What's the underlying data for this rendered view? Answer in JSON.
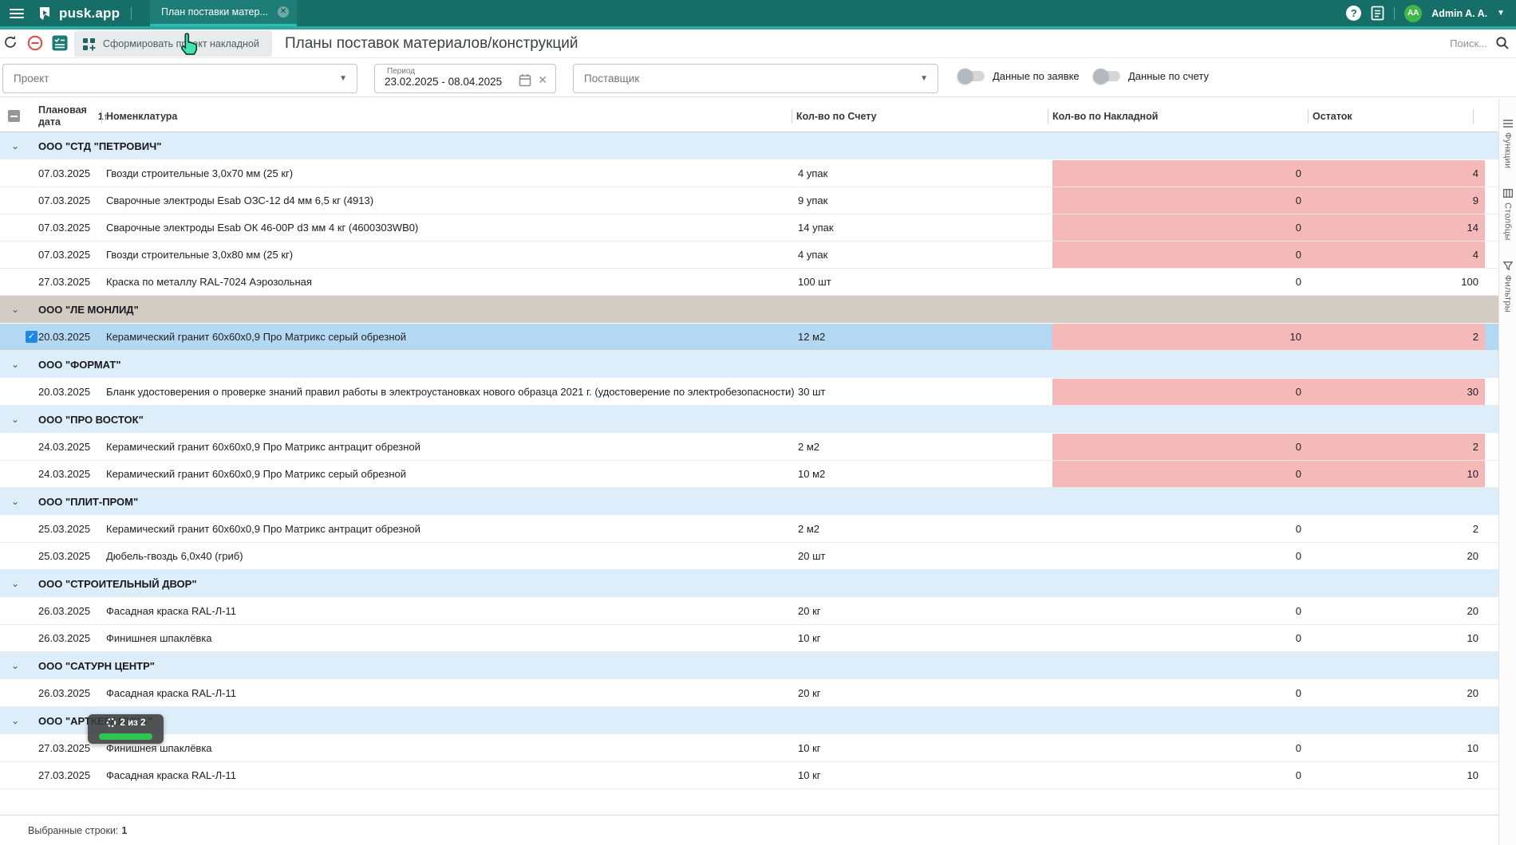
{
  "topbar": {
    "app_name": "pusk.app",
    "tab_title": "План поставки матер...",
    "help_glyph": "?",
    "user_initials": "AA",
    "user_name": "Admin A. A."
  },
  "toolbar": {
    "generate_button_label": "Сформировать проект накладной",
    "page_title": "Планы поставок материалов/конструкций",
    "search_placeholder": "Поиск..."
  },
  "filters": {
    "project_label": "Проект",
    "period_label": "Период",
    "period_value": "23.02.2025 - 08.04.2025",
    "supplier_label": "Поставщик",
    "toggle_request_label": "Данные по заявке",
    "toggle_invoice_label": "Данные по счету",
    "toggle_request_on": false,
    "toggle_invoice_on": false
  },
  "table": {
    "header": {
      "planned_date": "Плановая дата",
      "sort_indicator": "1↑",
      "nomenclature": "Номенклатура",
      "qty_invoice": "Кол-во по Счету",
      "qty_waybill": "Кол-во по Накладной",
      "remainder": "Остаток"
    },
    "groups": [
      {
        "name": "ООО \"СТД \"ПЕТРОВИЧ\"",
        "variant": "blue",
        "rows": [
          {
            "date": "07.03.2025",
            "item": "Гвозди строительные 3,0х70 мм (25 кг)",
            "qty": "4 упак",
            "waybill": "0",
            "rest": "4",
            "pink": true
          },
          {
            "date": "07.03.2025",
            "item": "Сварочные электроды Esab ОЗС-12 d4 мм 6,5 кг (4913)",
            "qty": "9 упак",
            "waybill": "0",
            "rest": "9",
            "pink": true
          },
          {
            "date": "07.03.2025",
            "item": "Сварочные электроды Esab ОК 46-00Р d3 мм 4 кг (4600303WB0)",
            "qty": "14 упак",
            "waybill": "0",
            "rest": "14",
            "pink": true
          },
          {
            "date": "07.03.2025",
            "item": "Гвозди строительные 3,0х80 мм (25 кг)",
            "qty": "4 упак",
            "waybill": "0",
            "rest": "4",
            "pink": true
          },
          {
            "date": "27.03.2025",
            "item": "Краска по металлу RAL-7024 Аэрозольная",
            "qty": "100 шт",
            "waybill": "0",
            "rest": "100",
            "pink": false
          }
        ]
      },
      {
        "name": "ООО \"ЛЕ МОНЛИД\"",
        "variant": "tan",
        "rows": [
          {
            "date": "20.03.2025",
            "item": "Керамический гранит 60х60х0,9 Про Матрикс серый обрезной",
            "qty": "12 м2",
            "waybill": "10",
            "rest": "2",
            "pink": true,
            "selected": true,
            "checked": true
          }
        ]
      },
      {
        "name": "ООО \"ФОРМАТ\"",
        "variant": "blue",
        "rows": [
          {
            "date": "20.03.2025",
            "item": "Бланк удостоверения о проверке знаний правил работы в электроустановках нового образца 2021 г. (удостоверение по электробезопасности)",
            "qty": "30 шт",
            "waybill": "0",
            "rest": "30",
            "pink": true
          }
        ]
      },
      {
        "name": "ООО \"ПРО ВОСТОК\"",
        "variant": "blue",
        "rows": [
          {
            "date": "24.03.2025",
            "item": "Керамический гранит 60х60х0,9 Про Матрикс антрацит обрезной",
            "qty": "2 м2",
            "waybill": "0",
            "rest": "2",
            "pink": true
          },
          {
            "date": "24.03.2025",
            "item": "Керамический гранит 60х60х0,9 Про Матрикс серый обрезной",
            "qty": "10 м2",
            "waybill": "0",
            "rest": "10",
            "pink": true
          }
        ]
      },
      {
        "name": "ООО \"ПЛИТ-ПРОМ\"",
        "variant": "blue",
        "rows": [
          {
            "date": "25.03.2025",
            "item": "Керамический гранит 60х60х0,9 Про Матрикс антрацит обрезной",
            "qty": "2 м2",
            "waybill": "0",
            "rest": "2",
            "pink": false
          },
          {
            "date": "25.03.2025",
            "item": "Дюбель-гвоздь 6,0х40 (гриб)",
            "qty": "20 шт",
            "waybill": "0",
            "rest": "20",
            "pink": false
          }
        ]
      },
      {
        "name": "ООО \"СТРОИТЕЛЬНЫЙ ДВОР\"",
        "variant": "blue",
        "rows": [
          {
            "date": "26.03.2025",
            "item": "Фасадная краска RAL-Л-11",
            "qty": "20 кг",
            "waybill": "0",
            "rest": "20",
            "pink": false
          },
          {
            "date": "26.03.2025",
            "item": "Финишнея шпаклёвка",
            "qty": "10 кг",
            "waybill": "0",
            "rest": "10",
            "pink": false
          }
        ]
      },
      {
        "name": "ООО \"САТУРН ЦЕНТР\"",
        "variant": "blue",
        "rows": [
          {
            "date": "26.03.2025",
            "item": "Фасадная краска RAL-Л-11",
            "qty": "20 кг",
            "waybill": "0",
            "rest": "20",
            "pink": false
          }
        ]
      },
      {
        "name": "ООО \"АРТКЕРАМИКА\"",
        "variant": "blue",
        "rows": [
          {
            "date": "27.03.2025",
            "item": "Финишнея шпаклёвка",
            "qty": "10 кг",
            "waybill": "0",
            "rest": "10",
            "pink": false
          },
          {
            "date": "27.03.2025",
            "item": "Фасадная краска RAL-Л-11",
            "qty": "10 кг",
            "waybill": "0",
            "rest": "10",
            "pink": false
          }
        ]
      }
    ]
  },
  "progress_popup": {
    "text": "2 из 2"
  },
  "footer": {
    "selected_rows_label": "Выбранные строки:",
    "selected_rows_value": "1"
  },
  "side_panel": {
    "items": [
      {
        "id": "functions",
        "label": "Функции"
      },
      {
        "id": "columns",
        "label": "Столбцы"
      },
      {
        "id": "filters",
        "label": "Фильтры"
      }
    ]
  },
  "colors": {
    "topbar_teal": "#156e67",
    "accent_teal": "#2aa99f",
    "tab_underline": "#2fbfb2",
    "group_blue": "#ddedf9",
    "group_tan": "#d3ccc5",
    "selected_row_blue": "#b5d8f2",
    "alert_pink": "#f6b9b9",
    "progress_green": "#2dc653",
    "avatar_green": "#43b649",
    "checkbox_blue": "#1e88e5"
  }
}
